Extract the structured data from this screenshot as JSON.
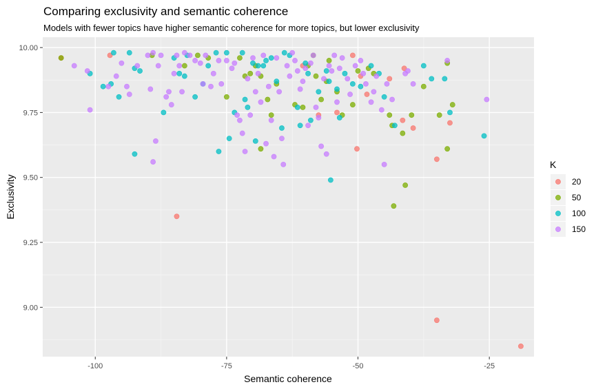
{
  "chart_data": {
    "type": "scatter",
    "title": "Comparing exclusivity and semantic coherence",
    "subtitle": "Models with fewer topics have higher semantic coherence for more topics, but lower exclusivity",
    "xlabel": "Semantic coherence",
    "ylabel": "Exclusivity",
    "xlim": [
      -110,
      -16.5
    ],
    "ylim": [
      8.81,
      10.04
    ],
    "x_ticks": [
      -100,
      -75,
      -50,
      -25
    ],
    "x_tick_labels": [
      "-100",
      "-75",
      "-50",
      "-25"
    ],
    "y_ticks": [
      9.0,
      9.25,
      9.5,
      9.75,
      10.0
    ],
    "y_tick_labels": [
      "9.00",
      "9.25",
      "9.50",
      "9.75",
      "10.00"
    ],
    "grid": true,
    "legend": {
      "title": "K",
      "position": "right"
    },
    "series": [
      {
        "name": "20",
        "color": "#F8766D",
        "points": [
          [
            -97.2,
            9.97
          ],
          [
            -106.5,
            9.96
          ],
          [
            -84.5,
            9.35
          ],
          [
            -50.2,
            9.61
          ],
          [
            -51.0,
            9.97
          ],
          [
            -48.3,
            9.82
          ],
          [
            -44.0,
            9.88
          ],
          [
            -41.5,
            9.72
          ],
          [
            -41.2,
            9.92
          ],
          [
            -39.5,
            9.69
          ],
          [
            -35.0,
            9.57
          ],
          [
            -35.0,
            8.95
          ],
          [
            -32.5,
            9.71
          ],
          [
            -19.0,
            8.85
          ],
          [
            -57.5,
            9.74
          ],
          [
            -54.0,
            9.75
          ],
          [
            -60.5,
            9.93
          ],
          [
            -49.5,
            9.89
          ]
        ]
      },
      {
        "name": "50",
        "color": "#7CAE00",
        "points": [
          [
            -106.5,
            9.96
          ],
          [
            -89.2,
            9.97
          ],
          [
            -80.5,
            9.97
          ],
          [
            -75.0,
            9.81
          ],
          [
            -72.5,
            9.96
          ],
          [
            -71.5,
            9.89
          ],
          [
            -70.5,
            9.9
          ],
          [
            -69.5,
            9.93
          ],
          [
            -68.5,
            9.89
          ],
          [
            -68.5,
            9.61
          ],
          [
            -67.2,
            9.8
          ],
          [
            -66.5,
            9.74
          ],
          [
            -65.5,
            9.86
          ],
          [
            -62.0,
            9.78
          ],
          [
            -60.5,
            9.77
          ],
          [
            -59.5,
            9.93
          ],
          [
            -58.5,
            9.97
          ],
          [
            -58.0,
            9.89
          ],
          [
            -57.0,
            9.8
          ],
          [
            -56.0,
            9.87
          ],
          [
            -55.5,
            9.95
          ],
          [
            -54.0,
            9.83
          ],
          [
            -53.0,
            9.74
          ],
          [
            -51.0,
            9.78
          ],
          [
            -50.0,
            9.91
          ],
          [
            -48.0,
            9.92
          ],
          [
            -47.0,
            9.9
          ],
          [
            -44.0,
            9.74
          ],
          [
            -43.5,
            9.7
          ],
          [
            -43.2,
            9.39
          ],
          [
            -41.5,
            9.67
          ],
          [
            -41.0,
            9.47
          ],
          [
            -39.8,
            9.74
          ],
          [
            -37.5,
            9.85
          ],
          [
            -34.5,
            9.74
          ],
          [
            -33.0,
            9.61
          ],
          [
            -33.0,
            9.94
          ],
          [
            -32.0,
            9.78
          ],
          [
            -83.0,
            9.93
          ],
          [
            -78.5,
            9.96
          ]
        ]
      },
      {
        "name": "100",
        "color": "#00BFC4",
        "points": [
          [
            -101.0,
            9.9
          ],
          [
            -98.5,
            9.85
          ],
          [
            -97.0,
            9.86
          ],
          [
            -96.5,
            9.98
          ],
          [
            -95.5,
            9.81
          ],
          [
            -93.5,
            9.98
          ],
          [
            -92.5,
            9.92
          ],
          [
            -91.5,
            9.91
          ],
          [
            -92.5,
            9.59
          ],
          [
            -87.0,
            9.75
          ],
          [
            -85.0,
            9.96
          ],
          [
            -84.0,
            9.9
          ],
          [
            -83.0,
            9.89
          ],
          [
            -82.5,
            9.97
          ],
          [
            -81.0,
            9.81
          ],
          [
            -79.5,
            9.86
          ],
          [
            -78.5,
            9.93
          ],
          [
            -77.0,
            9.98
          ],
          [
            -76.5,
            9.6
          ],
          [
            -75.0,
            9.98
          ],
          [
            -74.5,
            9.65
          ],
          [
            -73.5,
            9.75
          ],
          [
            -72.0,
            9.98
          ],
          [
            -71.5,
            9.8
          ],
          [
            -71.0,
            9.77
          ],
          [
            -70.0,
            9.94
          ],
          [
            -69.5,
            9.64
          ],
          [
            -69.0,
            9.93
          ],
          [
            -68.0,
            9.93
          ],
          [
            -67.5,
            9.95
          ],
          [
            -66.5,
            9.96
          ],
          [
            -65.5,
            9.87
          ],
          [
            -64.5,
            9.69
          ],
          [
            -64.0,
            9.98
          ],
          [
            -63.0,
            9.97
          ],
          [
            -61.5,
            9.77
          ],
          [
            -61.0,
            9.7
          ],
          [
            -60.0,
            9.94
          ],
          [
            -59.5,
            9.9
          ],
          [
            -59.0,
            9.72
          ],
          [
            -57.5,
            9.83
          ],
          [
            -56.0,
            9.91
          ],
          [
            -55.5,
            9.87
          ],
          [
            -55.2,
            9.49
          ],
          [
            -54.0,
            9.84
          ],
          [
            -53.5,
            9.73
          ],
          [
            -52.5,
            9.9
          ],
          [
            -51.0,
            9.86
          ],
          [
            -49.5,
            9.85
          ],
          [
            -47.5,
            9.93
          ],
          [
            -46.0,
            9.9
          ],
          [
            -45.0,
            9.81
          ],
          [
            -43.0,
            9.7
          ],
          [
            -37.5,
            9.93
          ],
          [
            -36.0,
            9.88
          ],
          [
            -33.5,
            9.88
          ],
          [
            -32.5,
            9.75
          ],
          [
            -26.0,
            9.66
          ]
        ]
      },
      {
        "name": "150",
        "color": "#C77CFF",
        "points": [
          [
            -104.0,
            9.93
          ],
          [
            -101.5,
            9.91
          ],
          [
            -101.0,
            9.76
          ],
          [
            -97.5,
            9.85
          ],
          [
            -96.0,
            9.89
          ],
          [
            -95.0,
            9.94
          ],
          [
            -94.0,
            9.85
          ],
          [
            -93.5,
            9.82
          ],
          [
            -92.0,
            9.93
          ],
          [
            -90.0,
            9.97
          ],
          [
            -89.5,
            9.84
          ],
          [
            -89.0,
            9.98
          ],
          [
            -88.5,
            9.64
          ],
          [
            -88.0,
            9.93
          ],
          [
            -87.5,
            9.97
          ],
          [
            -86.5,
            9.81
          ],
          [
            -86.0,
            9.83
          ],
          [
            -85.5,
            9.78
          ],
          [
            -85.0,
            9.9
          ],
          [
            -84.5,
            9.97
          ],
          [
            -84.0,
            9.93
          ],
          [
            -83.5,
            9.83
          ],
          [
            -83.0,
            9.98
          ],
          [
            -82.0,
            9.97
          ],
          [
            -81.0,
            9.95
          ],
          [
            -80.0,
            9.94
          ],
          [
            -79.5,
            9.86
          ],
          [
            -79.0,
            9.97
          ],
          [
            -78.0,
            9.85
          ],
          [
            -77.5,
            9.9
          ],
          [
            -76.5,
            9.95
          ],
          [
            -76.0,
            9.86
          ],
          [
            -75.0,
            9.95
          ],
          [
            -74.0,
            9.92
          ],
          [
            -73.5,
            9.94
          ],
          [
            -73.0,
            9.74
          ],
          [
            -72.5,
            9.72
          ],
          [
            -72.0,
            9.67
          ],
          [
            -71.5,
            9.6
          ],
          [
            -71.0,
            9.88
          ],
          [
            -70.5,
            9.74
          ],
          [
            -70.0,
            9.96
          ],
          [
            -69.5,
            9.83
          ],
          [
            -69.0,
            9.9
          ],
          [
            -68.5,
            9.79
          ],
          [
            -68.0,
            9.97
          ],
          [
            -67.5,
            9.63
          ],
          [
            -67.0,
            9.85
          ],
          [
            -66.5,
            9.72
          ],
          [
            -66.0,
            9.58
          ],
          [
            -65.5,
            9.96
          ],
          [
            -65.0,
            9.83
          ],
          [
            -64.5,
            9.65
          ],
          [
            -64.2,
            9.55
          ],
          [
            -63.5,
            9.93
          ],
          [
            -63.0,
            9.89
          ],
          [
            -62.5,
            9.98
          ],
          [
            -62.0,
            9.95
          ],
          [
            -61.5,
            9.91
          ],
          [
            -61.0,
            9.84
          ],
          [
            -60.5,
            9.87
          ],
          [
            -60.0,
            9.92
          ],
          [
            -59.5,
            9.7
          ],
          [
            -59.0,
            9.94
          ],
          [
            -58.5,
            9.97
          ],
          [
            -58.0,
            9.77
          ],
          [
            -57.5,
            9.73
          ],
          [
            -57.0,
            9.62
          ],
          [
            -56.5,
            9.88
          ],
          [
            -56.0,
            9.59
          ],
          [
            -55.5,
            9.93
          ],
          [
            -55.0,
            9.91
          ],
          [
            -54.5,
            9.97
          ],
          [
            -54.0,
            9.79
          ],
          [
            -53.5,
            9.92
          ],
          [
            -53.0,
            9.96
          ],
          [
            -52.0,
            9.88
          ],
          [
            -51.5,
            9.82
          ],
          [
            -50.5,
            9.93
          ],
          [
            -49.5,
            9.95
          ],
          [
            -49.0,
            9.9
          ],
          [
            -48.5,
            9.86
          ],
          [
            -47.5,
            9.79
          ],
          [
            -47.0,
            9.83
          ],
          [
            -46.5,
            9.89
          ],
          [
            -45.5,
            9.76
          ],
          [
            -45.0,
            9.55
          ],
          [
            -44.5,
            9.86
          ],
          [
            -43.5,
            9.8
          ],
          [
            -41.0,
            9.9
          ],
          [
            -40.5,
            9.91
          ],
          [
            -39.5,
            9.86
          ],
          [
            -25.5,
            9.8
          ],
          [
            -33.0,
            9.95
          ],
          [
            -89.0,
            9.56
          ]
        ]
      }
    ]
  }
}
